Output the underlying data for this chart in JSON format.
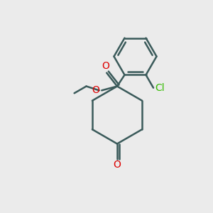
{
  "background_color": "#ebebeb",
  "bond_color": "#3a5a5a",
  "oxygen_color": "#dd0000",
  "chlorine_color": "#33bb00",
  "line_width": 1.8,
  "figsize": [
    3.0,
    3.0
  ],
  "dpi": 100,
  "xlim": [
    0,
    10
  ],
  "ylim": [
    0,
    10
  ]
}
